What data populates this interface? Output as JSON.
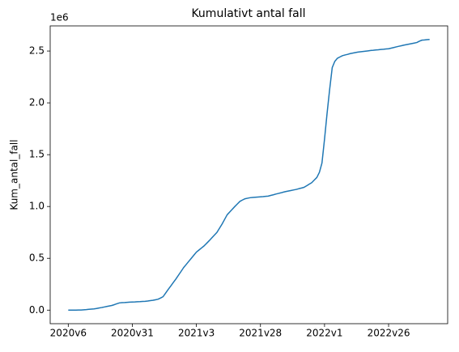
{
  "chart_data": {
    "type": "line",
    "title": "Kumulativt antal fall",
    "y_label": "Kum_antal_fall",
    "y_offset_label": "1e6",
    "categories": [
      "2020v6",
      null,
      null,
      null,
      null,
      null,
      null,
      null,
      null,
      null,
      null,
      null,
      null,
      null,
      null,
      null,
      null,
      null,
      null,
      null,
      null,
      null,
      null,
      null,
      null,
      "2020v31",
      null,
      null,
      null,
      null,
      null,
      null,
      null,
      null,
      null,
      null,
      null,
      null,
      null,
      null,
      null,
      null,
      null,
      null,
      null,
      null,
      null,
      null,
      null,
      null,
      "2021v3",
      null,
      null,
      null,
      null,
      null,
      null,
      null,
      null,
      null,
      null,
      null,
      null,
      null,
      null,
      null,
      null,
      null,
      null,
      null,
      null,
      null,
      null,
      null,
      null,
      "2021v28",
      null,
      null,
      null,
      null,
      null,
      null,
      null,
      null,
      null,
      null,
      null,
      null,
      null,
      null,
      null,
      null,
      null,
      null,
      null,
      null,
      null,
      null,
      null,
      null,
      "2022v1",
      null,
      null,
      null,
      null,
      null,
      null,
      null,
      null,
      null,
      null,
      null,
      null,
      null,
      null,
      null,
      null,
      null,
      null,
      null,
      null,
      null,
      null,
      null,
      null,
      "2022v26",
      null,
      null,
      null,
      null,
      null,
      null,
      null,
      null,
      null,
      null,
      null,
      null,
      null,
      null,
      null,
      null
    ],
    "series": [
      {
        "name": "Kum_antal_fall",
        "color": "#1f77b4",
        "values": [
          0,
          0,
          0,
          0,
          1000,
          1000,
          3000,
          5000,
          8000,
          10000,
          12000,
          16000,
          21000,
          25000,
          30000,
          35000,
          40000,
          45000,
          53000,
          62000,
          70000,
          72000,
          73000,
          75000,
          77000,
          78000,
          79000,
          81000,
          82000,
          84000,
          85000,
          88000,
          92000,
          95000,
          100000,
          105000,
          117000,
          130000,
          165000,
          200000,
          233000,
          267000,
          300000,
          337000,
          373000,
          410000,
          440000,
          470000,
          500000,
          530000,
          560000,
          580000,
          600000,
          620000,
          645000,
          670000,
          697000,
          723000,
          750000,
          790000,
          830000,
          875000,
          920000,
          947000,
          973000,
          1000000,
          1025000,
          1050000,
          1063000,
          1075000,
          1080000,
          1085000,
          1087000,
          1089000,
          1091000,
          1093000,
          1095000,
          1098000,
          1100000,
          1107000,
          1113000,
          1120000,
          1126000,
          1132000,
          1139000,
          1145000,
          1150000,
          1155000,
          1160000,
          1165000,
          1172000,
          1178000,
          1185000,
          1200000,
          1215000,
          1230000,
          1255000,
          1280000,
          1330000,
          1420000,
          1650000,
          1900000,
          2130000,
          2340000,
          2400000,
          2430000,
          2443000,
          2455000,
          2462000,
          2468000,
          2475000,
          2480000,
          2485000,
          2490000,
          2493000,
          2496000,
          2499000,
          2502000,
          2505000,
          2507000,
          2510000,
          2512000,
          2515000,
          2517000,
          2520000,
          2522000,
          2528000,
          2534000,
          2540000,
          2546000,
          2551000,
          2557000,
          2562000,
          2567000,
          2572000,
          2577000,
          2582000,
          2595000,
          2605000,
          2607000,
          2610000,
          2612000
        ]
      }
    ],
    "ylim": [
      -130600,
      2742600
    ],
    "yticks": [
      {
        "value": 0,
        "label": "0.0"
      },
      {
        "value": 500000,
        "label": "0.5"
      },
      {
        "value": 1000000,
        "label": "1.0"
      },
      {
        "value": 1500000,
        "label": "1.5"
      },
      {
        "value": 2000000,
        "label": "2.0"
      },
      {
        "value": 2500000,
        "label": "2.5"
      }
    ],
    "grid": false
  }
}
